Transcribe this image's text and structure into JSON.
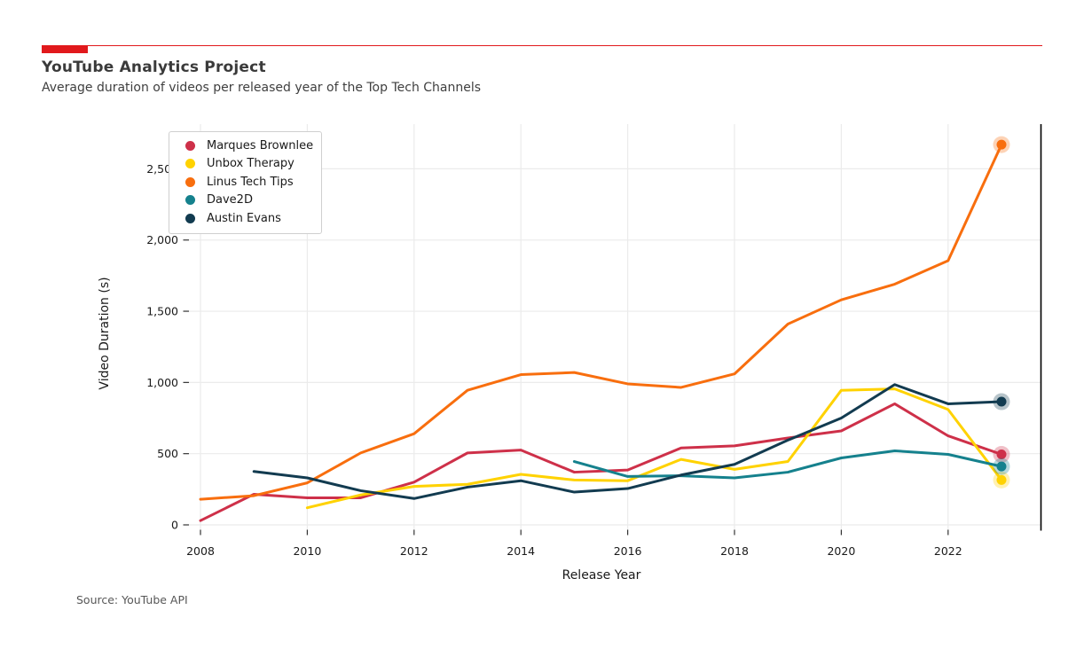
{
  "theme": {
    "accent_color": "#E1191C",
    "grid_color": "#EBEBEB",
    "spine_color": "#000000",
    "tick_color": "#333333",
    "tick_label_color": "#1a1a1a"
  },
  "header": {
    "title": "YouTube Analytics Project",
    "subtitle": "Average duration of videos per released year of the Top Tech Channels"
  },
  "source": "Source: YouTube API",
  "chart_data": {
    "type": "line",
    "title": "YouTube Analytics Project",
    "subtitle": "Average duration of videos per released year of the Top Tech Channels",
    "xlabel": "Release Year",
    "ylabel": "Video Duration (s)",
    "grid": true,
    "legend_position": "upper left",
    "xlim": [
      2007.8,
      2023.75
    ],
    "ylim": [
      0,
      2800
    ],
    "x_ticks": [
      {
        "v": 2008,
        "label": "2008"
      },
      {
        "v": 2010,
        "label": "2010"
      },
      {
        "v": 2012,
        "label": "2012"
      },
      {
        "v": 2014,
        "label": "2014"
      },
      {
        "v": 2016,
        "label": "2016"
      },
      {
        "v": 2018,
        "label": "2018"
      },
      {
        "v": 2020,
        "label": "2020"
      },
      {
        "v": 2022,
        "label": "2022"
      }
    ],
    "y_ticks": [
      {
        "v": 0,
        "label": "0"
      },
      {
        "v": 500,
        "label": "500"
      },
      {
        "v": 1000,
        "label": "1,000"
      },
      {
        "v": 1500,
        "label": "1,500"
      },
      {
        "v": 2000,
        "label": "2,000"
      },
      {
        "v": 2500,
        "label": "2,500"
      }
    ],
    "x": [
      2008,
      2009,
      2010,
      2011,
      2012,
      2013,
      2014,
      2015,
      2016,
      2017,
      2018,
      2019,
      2020,
      2021,
      2022,
      2023
    ],
    "end_markers": true,
    "series": [
      {
        "name": "Marques Brownlee",
        "color": "#CE3049",
        "values": [
          30,
          215,
          190,
          190,
          300,
          505,
          525,
          370,
          385,
          540,
          555,
          610,
          660,
          850,
          625,
          495
        ]
      },
      {
        "name": "Unbox Therapy",
        "color": "#FFD200",
        "values": [
          null,
          null,
          120,
          210,
          270,
          285,
          355,
          315,
          310,
          460,
          390,
          445,
          945,
          955,
          810,
          315
        ]
      },
      {
        "name": "Linus Tech Tips",
        "color": "#F86E0E",
        "values": [
          180,
          205,
          295,
          505,
          640,
          945,
          1055,
          1070,
          990,
          965,
          1060,
          1410,
          1580,
          1690,
          1855,
          2670
        ]
      },
      {
        "name": "Dave2D",
        "color": "#15818D",
        "values": [
          null,
          null,
          null,
          null,
          null,
          null,
          null,
          445,
          340,
          345,
          330,
          370,
          470,
          520,
          495,
          410
        ]
      },
      {
        "name": "Austin Evans",
        "color": "#123B50",
        "values": [
          null,
          375,
          330,
          240,
          185,
          265,
          310,
          230,
          255,
          350,
          425,
          595,
          750,
          985,
          850,
          865
        ]
      }
    ]
  }
}
